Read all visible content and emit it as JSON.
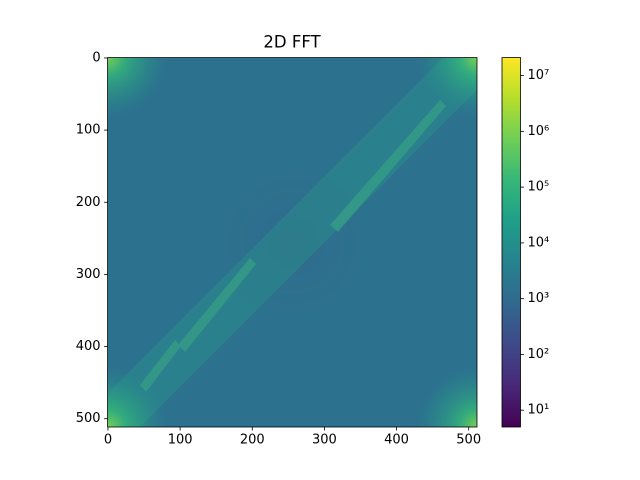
{
  "chart_data": {
    "type": "image",
    "title": "2D FFT",
    "xlim": [
      -0.5,
      511.5
    ],
    "xticks": [
      0,
      100,
      200,
      300,
      400,
      500
    ],
    "ylim": [
      511.5,
      -0.5
    ],
    "yticks": [
      0,
      100,
      200,
      300,
      400,
      500
    ],
    "colorbar": {
      "scale": "log",
      "colormap": "viridis",
      "lim": [
        5,
        21000000
      ],
      "ticks": [
        {
          "value": 10,
          "label": "10¹"
        },
        {
          "value": 100,
          "label": "10²"
        },
        {
          "value": 1000,
          "label": "10³"
        },
        {
          "value": 10000,
          "label": "10⁴"
        },
        {
          "value": 100000,
          "label": "10⁵"
        },
        {
          "value": 1000000,
          "label": "10⁶"
        },
        {
          "value": 10000000,
          "label": "10⁷"
        }
      ]
    }
  }
}
